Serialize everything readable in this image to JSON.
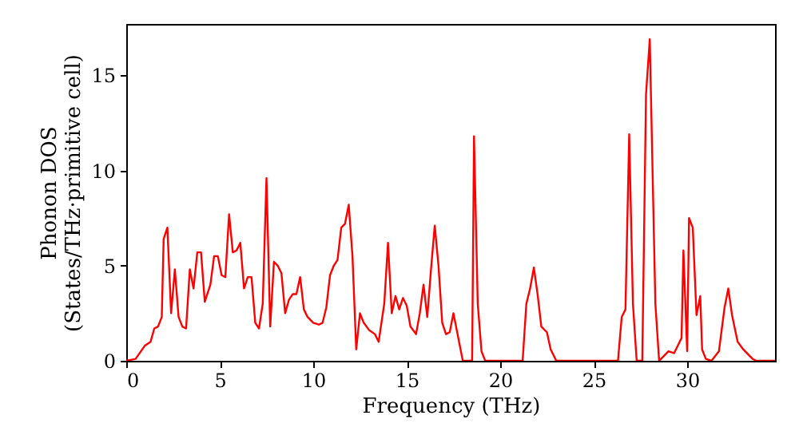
{
  "chart_data": {
    "type": "line",
    "xlabel": "Frequency (THz)",
    "ylabel": "Phonon DOS\n(States/THz·primitive cell)",
    "x": [
      0,
      0.5,
      1,
      1.3,
      1.5,
      1.7,
      1.9,
      2.0,
      2.2,
      2.4,
      2.6,
      2.8,
      3.0,
      3.2,
      3.4,
      3.6,
      3.8,
      4.0,
      4.2,
      4.5,
      4.7,
      4.9,
      5.1,
      5.3,
      5.5,
      5.7,
      5.9,
      6.1,
      6.3,
      6.5,
      6.7,
      6.9,
      7.1,
      7.3,
      7.5,
      7.7,
      7.9,
      8.1,
      8.3,
      8.5,
      8.7,
      8.9,
      9.1,
      9.3,
      9.5,
      9.7,
      10.0,
      10.3,
      10.5,
      10.7,
      10.9,
      11.1,
      11.3,
      11.5,
      11.7,
      11.9,
      12.1,
      12.3,
      12.5,
      12.7,
      13.0,
      13.3,
      13.5,
      13.8,
      14.0,
      14.2,
      14.4,
      14.6,
      14.8,
      15.0,
      15.2,
      15.5,
      15.7,
      15.9,
      16.1,
      16.3,
      16.5,
      16.7,
      16.9,
      17.1,
      17.3,
      17.5,
      17.7,
      18.0,
      18.5,
      18.6,
      18.8,
      19.0,
      19.2,
      21.2,
      21.4,
      21.6,
      21.8,
      22.0,
      22.2,
      22.5,
      22.7,
      23.0,
      26.3,
      26.5,
      26.7,
      26.9,
      27.1,
      27.3,
      27.6,
      27.8,
      28.0,
      28.3,
      28.5,
      28.8,
      29.0,
      29.3,
      29.5,
      29.7,
      29.8,
      30.0,
      30.1,
      30.3,
      30.5,
      30.7,
      30.8,
      31.0,
      31.3,
      31.7,
      32.0,
      32.2,
      32.4,
      32.7,
      33.0,
      33.5,
      33.7,
      34.7
    ],
    "series": [
      {
        "color": "#ff0000",
        "values": [
          0,
          0.1,
          0.8,
          1.0,
          1.7,
          1.8,
          2.3,
          6.4,
          7.0,
          2.5,
          4.8,
          2.3,
          1.8,
          1.7,
          4.8,
          3.8,
          5.7,
          5.7,
          3.1,
          4.0,
          5.5,
          5.5,
          4.5,
          4.4,
          7.7,
          5.7,
          5.8,
          6.2,
          3.8,
          4.4,
          4.4,
          2.0,
          1.7,
          3.0,
          9.6,
          1.8,
          5.2,
          5.0,
          4.6,
          2.5,
          3.2,
          3.5,
          3.5,
          4.4,
          2.7,
          2.3,
          2.0,
          1.9,
          2.0,
          2.8,
          4.5,
          5.0,
          5.3,
          7.0,
          7.2,
          8.2,
          5.5,
          0.6,
          2.5,
          2.0,
          1.6,
          1.4,
          1.0,
          3.0,
          6.2,
          2.5,
          3.4,
          2.7,
          3.3,
          2.9,
          1.8,
          1.4,
          2.5,
          4.0,
          2.3,
          4.8,
          7.1,
          5.0,
          2.0,
          1.4,
          1.5,
          2.5,
          1.5,
          0,
          0,
          11.8,
          3.0,
          0.5,
          0,
          0,
          3.0,
          3.8,
          4.9,
          3.5,
          1.8,
          1.5,
          0.6,
          0,
          0,
          2.3,
          2.7,
          11.9,
          3.0,
          0,
          0,
          14.0,
          16.9,
          3.0,
          0,
          0.3,
          0.5,
          0.4,
          0.8,
          1.2,
          5.8,
          0.5,
          7.5,
          7.0,
          2.4,
          3.4,
          0.6,
          0.1,
          0,
          0.5,
          2.8,
          3.8,
          2.4,
          1.0,
          0.6,
          0.1,
          0,
          0
        ]
      }
    ],
    "xlim": [
      0,
      34.7
    ],
    "ylim": [
      0,
      17.7
    ],
    "xticks": [
      0,
      5,
      10,
      15,
      20,
      25,
      30
    ],
    "yticks": [
      0,
      5,
      10,
      15
    ],
    "grid": false
  }
}
